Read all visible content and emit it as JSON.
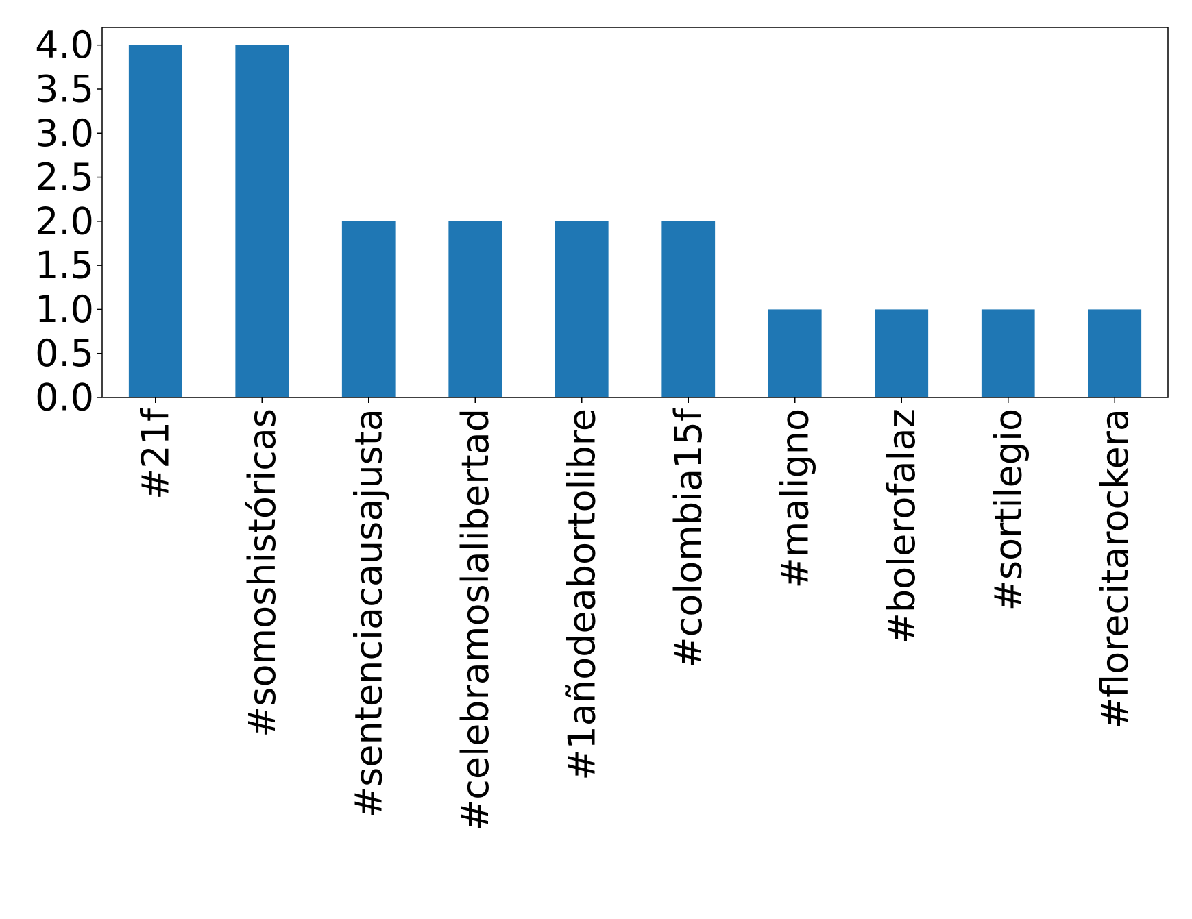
{
  "chart_data": {
    "type": "bar",
    "categories": [
      "#21f",
      "#somoshistóricas",
      "#sentenciacausajusta",
      "#celebramoslalibertad",
      "#1añodeabortolibre",
      "#colombia15f",
      "#maligno",
      "#bolerofalaz",
      "#sortilegio",
      "#florecitarockera"
    ],
    "values": [
      4,
      4,
      2,
      2,
      2,
      2,
      1,
      1,
      1,
      1
    ],
    "title": "",
    "xlabel": "",
    "ylabel": "",
    "ylim": [
      0,
      4.2
    ],
    "yticks": [
      "0.0",
      "0.5",
      "1.0",
      "1.5",
      "2.0",
      "2.5",
      "3.0",
      "3.5",
      "4.0"
    ],
    "yticks_values": [
      0,
      0.5,
      1,
      1.5,
      2,
      2.5,
      3,
      3.5,
      4
    ],
    "bar_color": "#1f77b4",
    "grid": false,
    "legend": "none"
  }
}
